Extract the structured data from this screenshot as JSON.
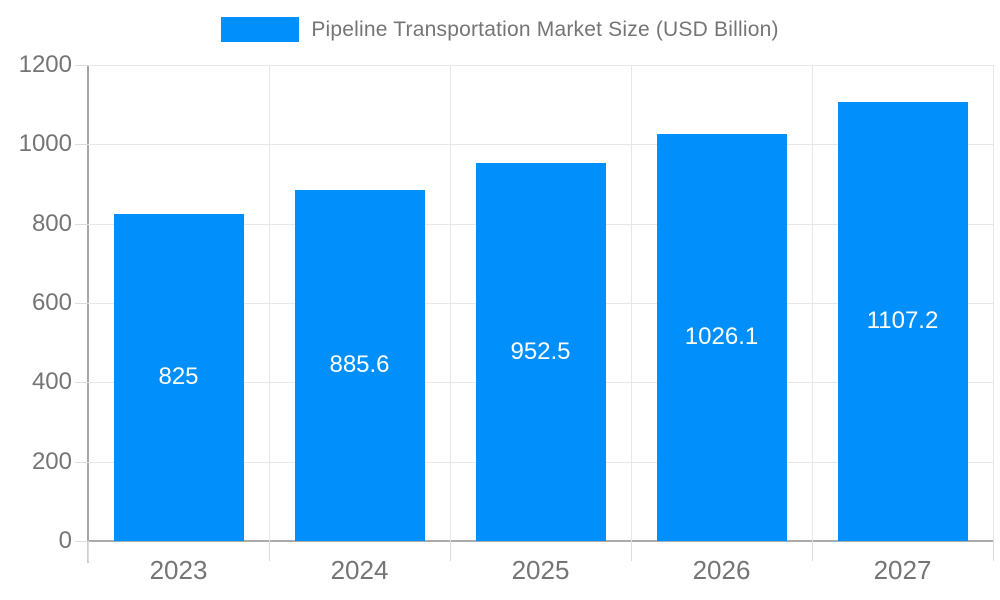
{
  "legend": {
    "label": "Pipeline Transportation Market Size (USD Billion)",
    "swatch_color": "#008FFB"
  },
  "colors": {
    "bar": "#008FFB",
    "axis_label": "#757575",
    "legend_label": "#757575",
    "value_label": "#ffffff",
    "gridline": "#e7e7e7",
    "axis_line": "#a6a6a6",
    "background": "#ffffff"
  },
  "chart_data": {
    "type": "bar",
    "title": "Pipeline Transportation Market Size (USD Billion)",
    "categories": [
      "2023",
      "2024",
      "2025",
      "2026",
      "2027"
    ],
    "values": [
      825,
      885.6,
      952.5,
      1026.1,
      1107.2
    ],
    "value_labels": [
      "825",
      "885.6",
      "952.5",
      "1026.1",
      "1107.2"
    ],
    "xlabel": "",
    "ylabel": "",
    "ylim": [
      0,
      1200
    ],
    "yticks": [
      0,
      200,
      400,
      600,
      800,
      1000,
      1200
    ],
    "grid": true,
    "legend_position": "top-center",
    "series_color": "#008FFB",
    "value_label_position": "middle-of-bar"
  }
}
